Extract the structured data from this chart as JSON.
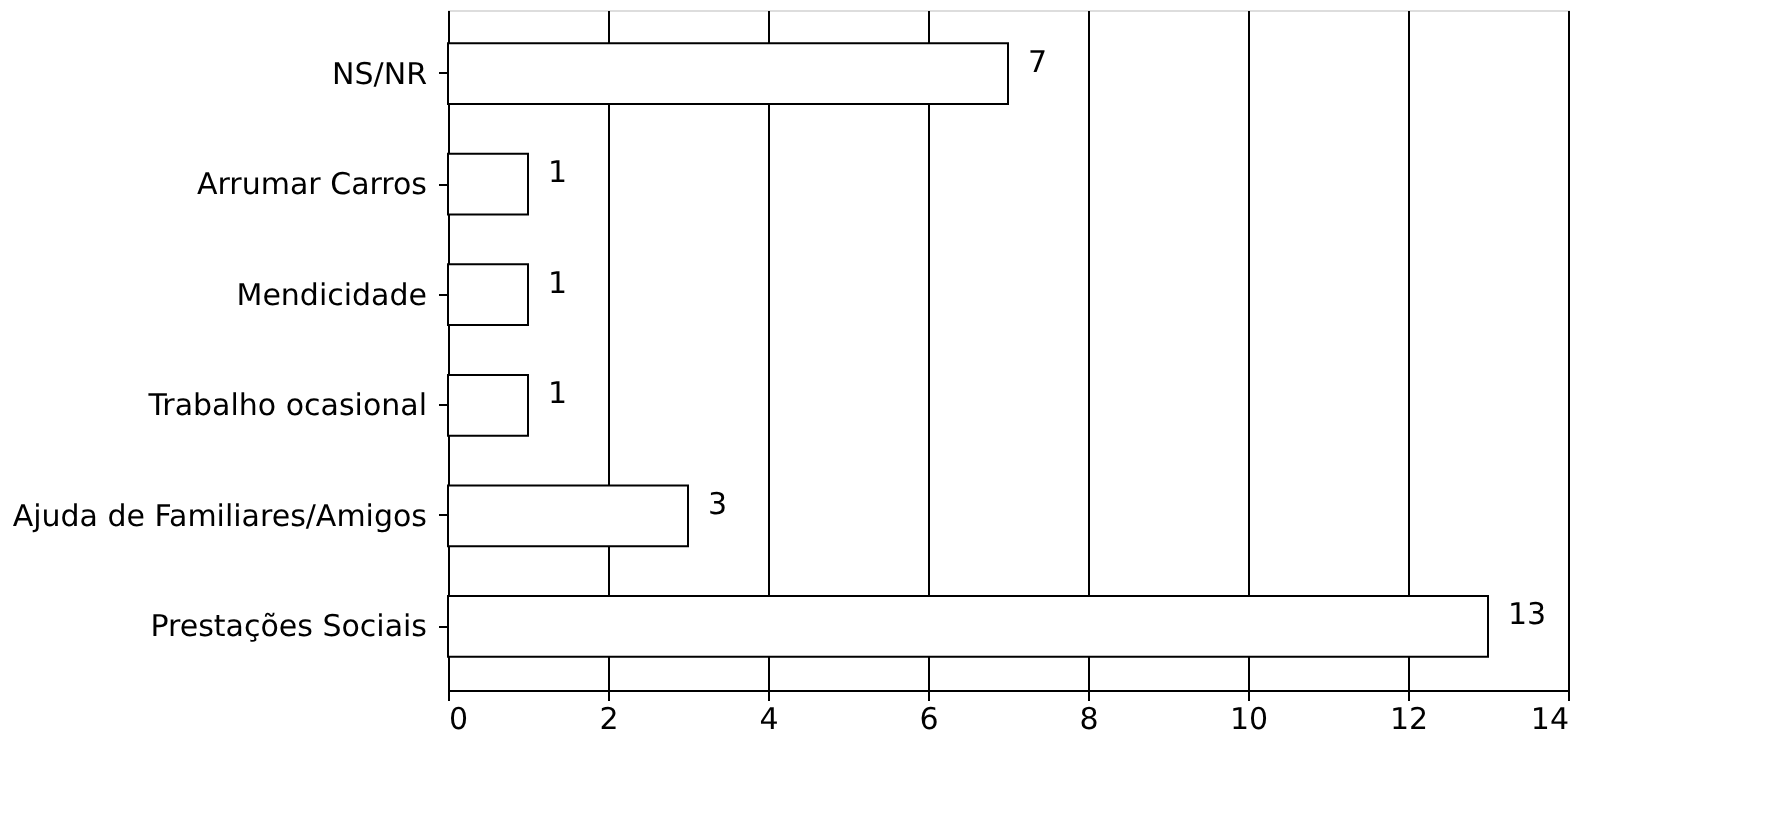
{
  "chart_data": {
    "type": "bar",
    "orientation": "horizontal",
    "categories": [
      "NS/NR",
      "Arrumar Carros",
      "Mendicidade",
      "Trabalho ocasional",
      "Ajuda de Familiares/Amigos",
      "Prestações Sociais"
    ],
    "values": [
      7,
      1,
      1,
      1,
      3,
      13
    ],
    "color": "#ffffff",
    "xlim": [
      0,
      14
    ],
    "xticks": [
      0,
      2,
      4,
      6,
      8,
      10,
      12,
      14
    ],
    "grid": "x",
    "data_labels": true
  }
}
